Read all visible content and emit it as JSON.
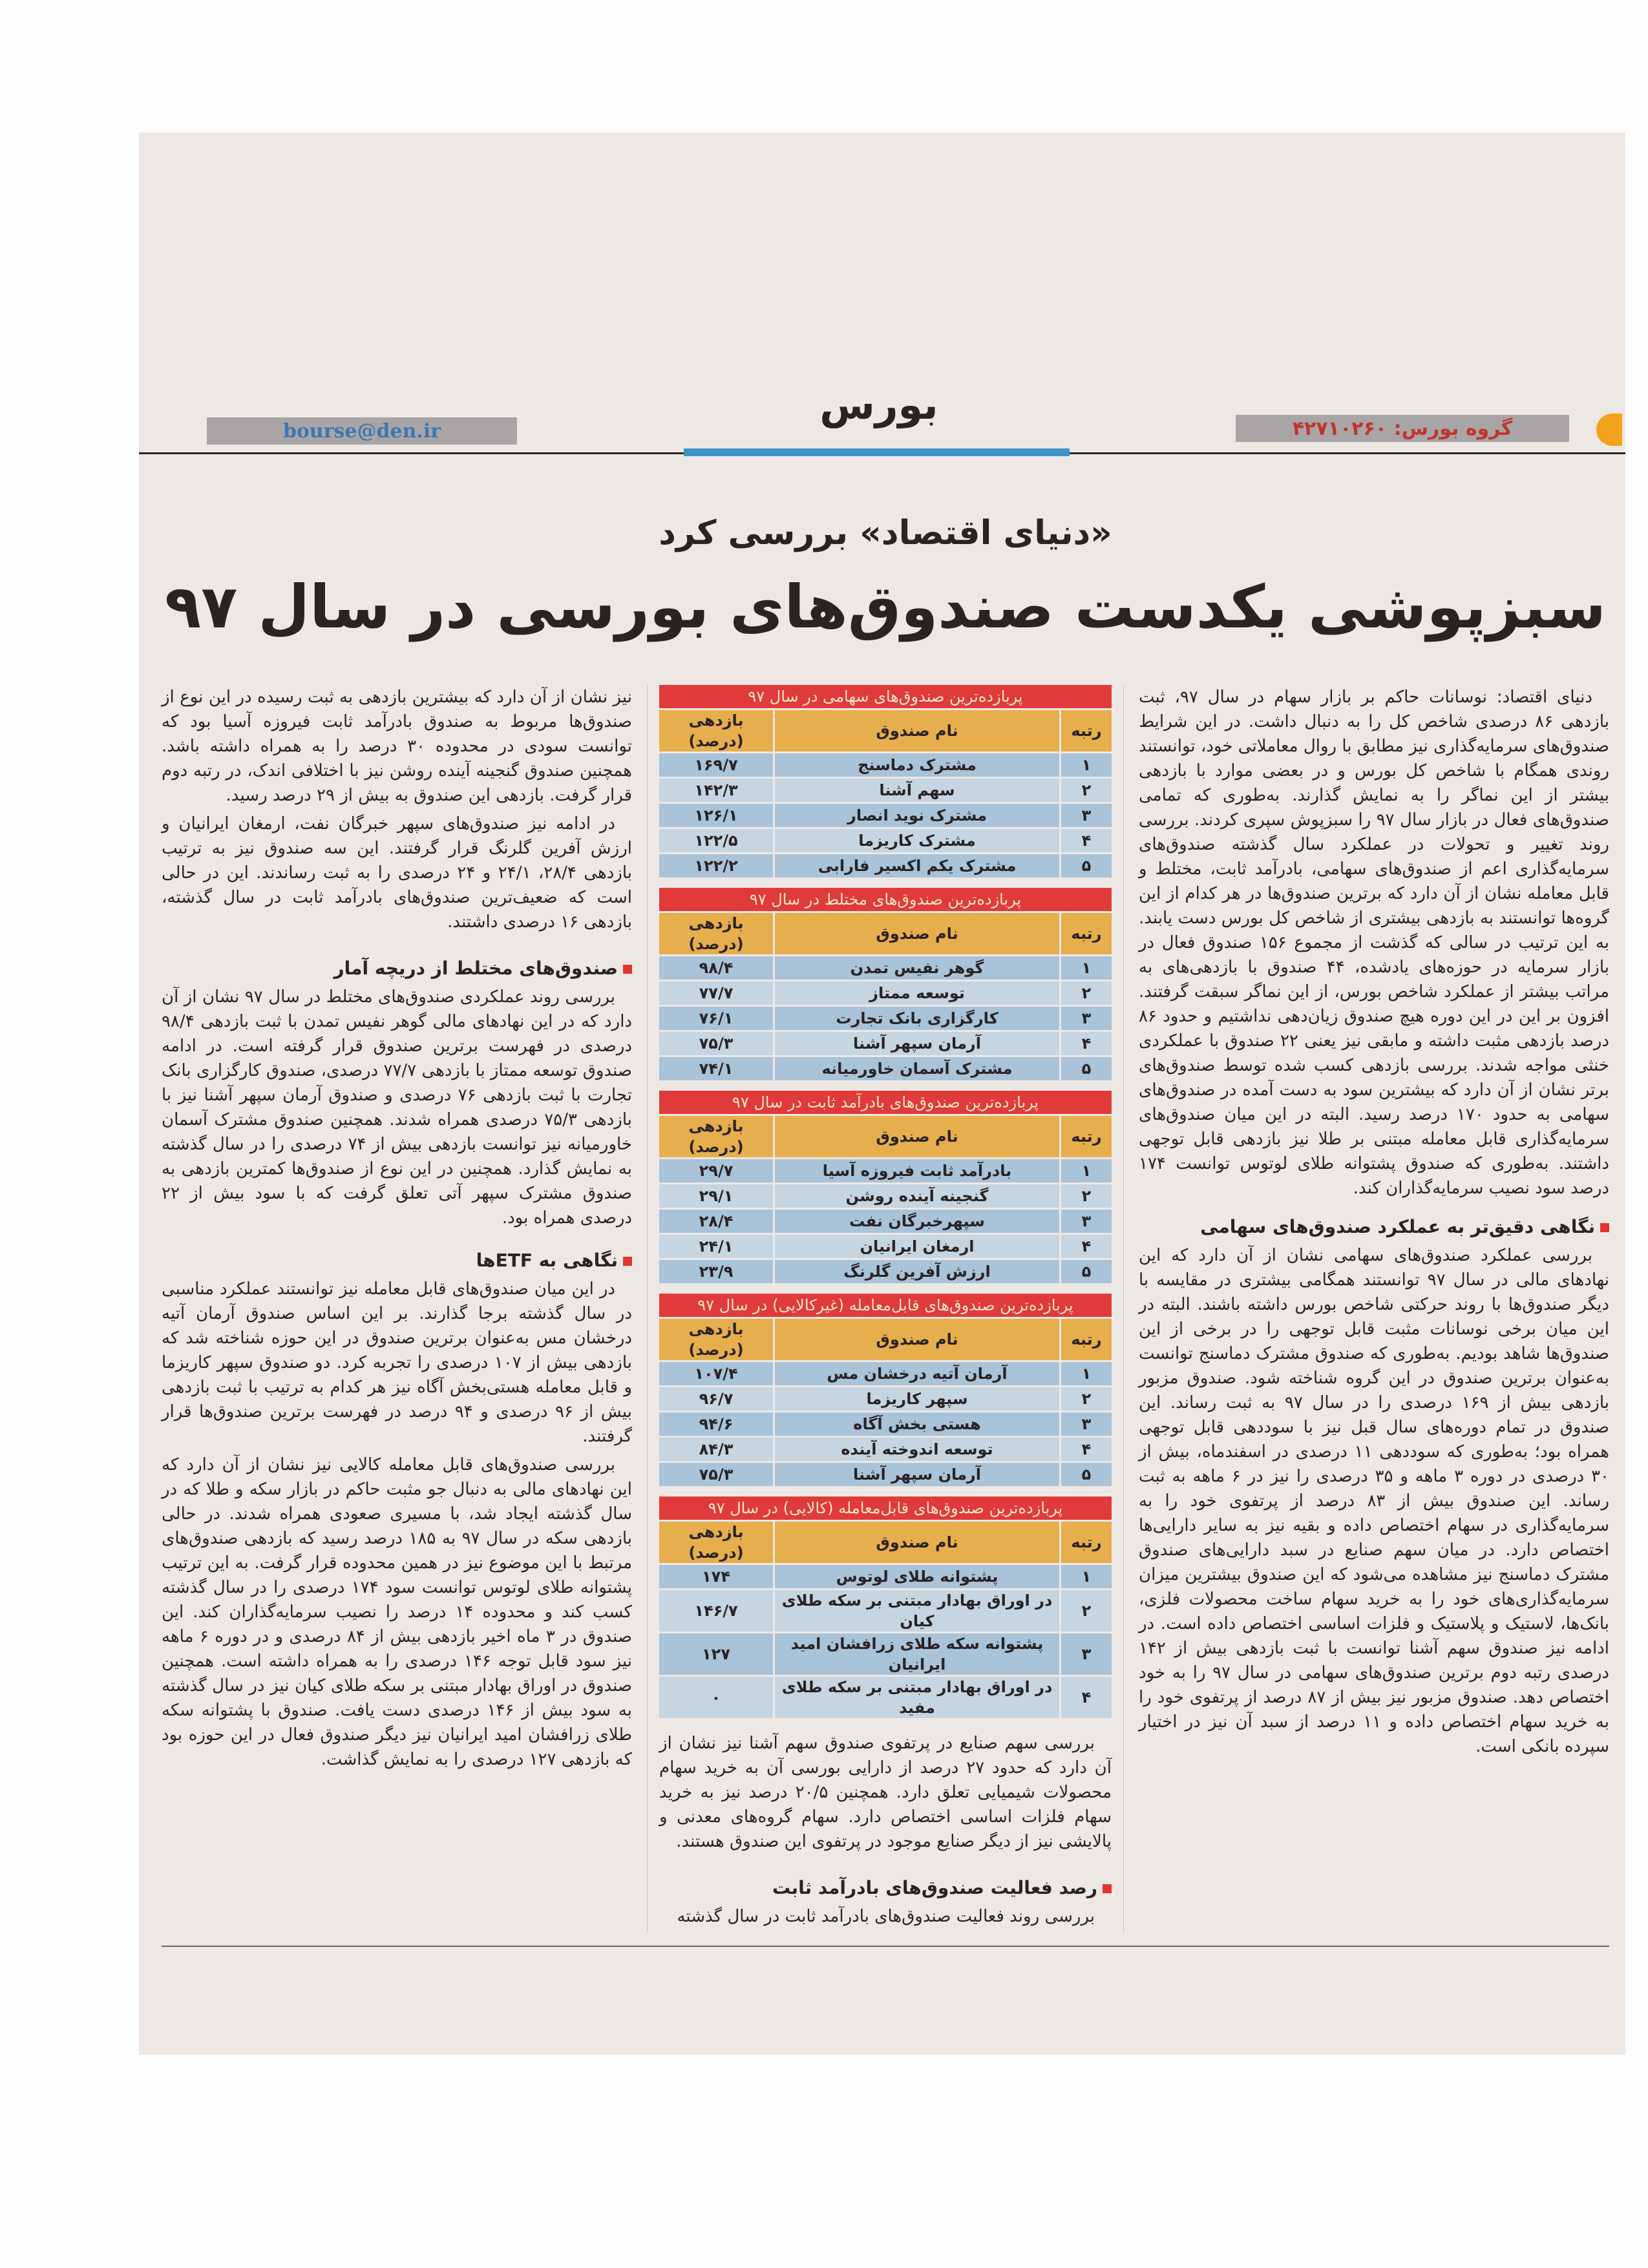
{
  "header": {
    "email": "bourse@den.ir",
    "section": "بورس",
    "phone": "گروه بورس: ۴۲۷۱۰۲۶۰",
    "accent_color": "#3d93c9"
  },
  "article": {
    "kicker": "«دنیای اقتصاد» بررسی کرد",
    "headline": "سبزپوشی یکدست صندوق‌های بورسی در سال ۹۷",
    "right_column": {
      "p1": "دنیای اقتصاد: نوسانات حاکم بر بازار سهام در سال ۹۷، ثبت بازدهی ۸۶ درصدی شاخص کل را به دنبال داشت. در این شرایط صندوق‌های سرمایه‌گذاری نیز مطابق با روال معاملاتی خود، توانستند روندی همگام با شاخص کل بورس و در بعضی موارد با بازدهی بیشتر از این نماگر را به نمایش گذارند. به‌طوری که تمامی صندوق‌های فعال در بازار سال ۹۷ را سبزپوش سپری کردند. بررسی روند تغییر و تحولات در عملکرد سال گذشته صندوق‌های سرمایه‌گذاری اعم از صندوق‌های سهامی، بادرآمد ثابت، مختلط و قابل معامله نشان از آن دارد که برترین صندوق‌ها در هر کدام از این گروه‌ها توانستند به بازدهی بیشتری از شاخص کل بورس دست یابند. به این ترتیب در سالی که گذشت از مجموع ۱۵۶ صندوق فعال در بازار سرمایه در حوزه‌های یادشده، ۴۴ صندوق با بازدهی‌های به مراتب بیشتر از عملکرد شاخص بورس، از این نماگر سبقت گرفتند. افزون بر این در این دوره هیچ صندوق زیان‌دهی نداشتیم و حدود ۸۶ درصد بازدهی مثبت داشته و مابقی نیز یعنی ۲۲ صندوق با عملکردی خنثی مواجه شدند. بررسی بازدهی کسب شده توسط صندوق‌های برتر نشان از آن دارد که بیشترین سود به دست آمده در صندوق‌های سهامی به حدود ۱۷۰ درصد رسید. البته در این میان صندوق‌های سرمایه‌گذاری قابل معامله مبتنی بر طلا نیز بازدهی قابل توجهی داشتند. به‌طوری که صندوق پشتوانه طلای لوتوس توانست ۱۷۴ درصد سود نصیب سرمایه‌گذاران کند.",
      "h1": "نگاهی دقیق‌تر به عملکرد صندوق‌های سهامی",
      "p2": "بررسی عملکرد صندوق‌های سهامی نشان از آن دارد که این نهادهای مالی در سال ۹۷ توانستند همگامی بیشتری در مقایسه با دیگر صندوق‌ها با روند حرکتی شاخص بورس داشته باشند. البته در این میان برخی نوسانات مثبت قابل توجهی را در برخی از این صندوق‌ها شاهد بودیم. به‌طوری که صندوق مشترک دماسنج توانست به‌عنوان برترین صندوق در این گروه شناخته شود. صندوق مزبور بازدهی بیش از ۱۶۹ درصدی را در سال ۹۷ به ثبت رساند. این صندوق در تمام دوره‌های سال قبل نیز با سوددهی قابل توجهی همراه بود؛ به‌طوری که سوددهی ۱۱ درصدی در اسفندماه، بیش از ۳۰ درصدی در دوره ۳ ماهه و ۳۵ درصدی را نیز در ۶ ماهه به ثبت رساند. این صندوق بیش از ۸۳ درصد از پرتفوی خود را به سرمایه‌گذاری در سهام اختصاص داده و بقیه نیز به سایر دارایی‌ها اختصاص دارد. در میان سهم صنایع در سبد دارایی‌های صندوق مشترک دماسنج نیز مشاهده می‌شود که این صندوق بیشترین میزان سرمایه‌گذاری‌های خود را به خرید سهام ساخت محصولات فلزی، بانک‌ها، لاستیک و پلاستیک و فلزات اساسی اختصاص داده است. در ادامه نیز صندوق سهم آشنا توانست با ثبت بازدهی بیش از ۱۴۲ درصدی رتبه دوم برترین صندوق‌های سهامی در سال ۹۷ را به خود اختصاص دهد. صندوق مزبور نیز بیش از ۸۷ درصد از پرتفوی خود را به خرید سهام اختصاص داده و ۱۱ درصد از سبد آن نیز در اختیار سپرده بانکی است."
    },
    "middle_column": {
      "p1": "بررسی سهم صنایع در پرتفوی صندوق سهم آشنا نیز نشان از آن دارد که حدود ۲۷ درصد از دارایی بورسی آن به خرید سهام محصولات شیمیایی تعلق دارد. همچنین ۲۰/۵ درصد نیز به خرید سهام فلزات اساسی اختصاص دارد. سهام گروه‌های معدنی و پالایشی نیز از دیگر صنایع موجود در پرتفوی این صندوق هستند.",
      "h1": "رصد فعالیت صندوق‌های بادرآمد ثابت",
      "p2": "بررسی روند فعالیت صندوق‌های بادرآمد ثابت در سال گذشته"
    },
    "left_column": {
      "p1": "نیز نشان از آن دارد که بیشترین بازدهی به ثبت رسیده در این نوع از صندوق‌ها مربوط به صندوق بادرآمد ثابت فیروزه آسیا بود که توانست سودی در محدوده ۳۰ درصد را به همراه داشته باشد. همچنین صندوق گنجینه آینده روشن نیز با اختلافی اندک، در رتبه دوم قرار گرفت. بازدهی این صندوق به بیش از ۲۹ درصد رسید.",
      "p2": "در ادامه نیز صندوق‌های سپهر خبرگان نفت، ارمغان ایرانیان و ارزش آفرین گلرنگ قرار گرفتند. این سه صندوق نیز به ترتیب بازدهی ۲۸/۴، ۲۴/۱ و ۲۴ درصدی را به ثبت رساندند. این در حالی است که ضعیف‌ترین صندوق‌های بادرآمد ثابت در سال گذشته، بازدهی ۱۶ درصدی داشتند.",
      "h1": "صندوق‌های مختلط از دریچه آمار",
      "p3": "بررسی روند عملکردی صندوق‌های مختلط در سال ۹۷ نشان از آن دارد که در این نهادهای مالی گوهر نفیس تمدن با ثبت بازدهی ۹۸/۴ درصدی در فهرست برترین صندوق قرار گرفته است. در ادامه صندوق توسعه ممتاز با بازدهی ۷۷/۷ درصدی، صندوق کارگزاری بانک تجارت با ثبت بازدهی ۷۶ درصدی و صندوق آرمان سپهر آشنا نیز با بازدهی ۷۵/۳ درصدی همراه شدند. همچنین صندوق مشترک آسمان خاورمیانه نیز توانست بازدهی بیش از ۷۴ درصدی را در سال گذشته به نمایش گذارد. همچنین در این نوع از صندوق‌ها کمترین بازدهی به صندوق مشترک سپهر آتی تعلق گرفت که با سود بیش از ۲۲ درصدی همراه بود.",
      "h2": "نگاهی به ETFها",
      "p4": "در این میان صندوق‌های قابل معامله نیز توانستند عملکرد مناسبی در سال گذشته برجا گذارند. بر این اساس صندوق آرمان آتیه درخشان مس به‌عنوان برترین صندوق در این حوزه شناخته شد که بازدهی بیش از ۱۰۷ درصدی را تجربه کرد. دو صندوق سپهر کاریزما و قابل معامله هستی‌بخش آگاه نیز هر کدام به ترتیب با ثبت بازدهی بیش از ۹۶ درصدی و ۹۴ درصد در فهرست برترین صندوق‌ها قرار گرفتند.",
      "p5": "بررسی صندوق‌های قابل معامله کالایی نیز نشان از آن دارد که این نهادهای مالی به دنبال جو مثبت حاکم در بازار سکه و طلا که در سال گذشته ایجاد شد، با مسیری صعودی همراه شدند. در حالی بازدهی سکه در سال ۹۷ به ۱۸۵ درصد رسید که بازدهی صندوق‌های مرتبط با این موضوع نیز در همین محدوده قرار گرفت. به این ترتیب پشتوانه طلای لوتوس توانست سود ۱۷۴ درصدی را در سال گذشته کسب کند و محدوده ۱۴ درصد را نصیب سرمایه‌گذاران کند. این صندوق در ۳ ماه اخیر بازدهی بیش از ۸۴ درصدی و در دوره ۶ ماهه نیز سود قابل توجه ۱۴۶ درصدی را به همراه داشته است. همچنین صندوق در اوراق بهادار مبتنی بر سکه طلای کیان نیز در سال گذشته به سود بیش از ۱۴۶ درصدی دست یافت. صندوق با پشتوانه سکه طلای زرافشان امید ایرانیان نیز دیگر صندوق فعال در این حوزه بود که بازدهی ۱۲۷ درصدی را به نمایش گذاشت."
    }
  },
  "table_colors": {
    "title": "#e03a3a",
    "header": "#e6ae4c",
    "row_dark": "#a9c3d8",
    "row_light": "#c5d5e1"
  },
  "tables": [
    {
      "title": "پربازده‌ترین صندوق‌های سهامی در سال ۹۷",
      "columns": [
        "رتبه",
        "نام صندوق",
        "بازدهی (درصد)"
      ],
      "rows": [
        [
          "۱",
          "مشترک دماسنج",
          "۱۶۹/۷"
        ],
        [
          "۲",
          "سهم آشنا",
          "۱۴۲/۳"
        ],
        [
          "۳",
          "مشترک نوید انصار",
          "۱۲۶/۱"
        ],
        [
          "۴",
          "مشترک کاریزما",
          "۱۲۲/۵"
        ],
        [
          "۵",
          "مشترک یکم اکسیر فارابی",
          "۱۲۲/۲"
        ]
      ]
    },
    {
      "title": "پربازده‌ترین صندوق‌های مختلط در سال ۹۷",
      "columns": [
        "رتبه",
        "نام صندوق",
        "بازدهی (درصد)"
      ],
      "rows": [
        [
          "۱",
          "گوهر نفیس تمدن",
          "۹۸/۴"
        ],
        [
          "۲",
          "توسعه ممتاز",
          "۷۷/۷"
        ],
        [
          "۳",
          "کارگزاری بانک تجارت",
          "۷۶/۱"
        ],
        [
          "۴",
          "آرمان سپهر آشنا",
          "۷۵/۳"
        ],
        [
          "۵",
          "مشترک آسمان خاورمیانه",
          "۷۴/۱"
        ]
      ]
    },
    {
      "title": "پربازده‌ترین صندوق‌های بادرآمد ثابت در سال ۹۷",
      "columns": [
        "رتبه",
        "نام صندوق",
        "بازدهی (درصد)"
      ],
      "rows": [
        [
          "۱",
          "بادرآمد ثابت فیروزه آسیا",
          "۲۹/۷"
        ],
        [
          "۲",
          "گنجینه آینده روشن",
          "۲۹/۱"
        ],
        [
          "۳",
          "سپهرخبرگان نفت",
          "۲۸/۴"
        ],
        [
          "۴",
          "ارمغان ایرانیان",
          "۲۴/۱"
        ],
        [
          "۵",
          "ارزش آفرین گلرنگ",
          "۲۳/۹"
        ]
      ]
    },
    {
      "title": "پربازده‌ترین صندوق‌های قابل‌معامله (غیرکالایی) در سال ۹۷",
      "columns": [
        "رتبه",
        "نام صندوق",
        "بازدهی (درصد)"
      ],
      "rows": [
        [
          "۱",
          "آرمان آتیه درخشان مس",
          "۱۰۷/۴"
        ],
        [
          "۲",
          "سپهر کاریزما",
          "۹۶/۷"
        ],
        [
          "۳",
          "هستی بخش آگاه",
          "۹۴/۶"
        ],
        [
          "۴",
          "توسعه اندوخته آینده",
          "۸۴/۳"
        ],
        [
          "۵",
          "آرمان سپهر آشنا",
          "۷۵/۳"
        ]
      ]
    },
    {
      "title": "پربازده‌ترین صندوق‌های قابل‌معامله (کالایی) در سال ۹۷",
      "columns": [
        "رتبه",
        "نام صندوق",
        "بازدهی (درصد)"
      ],
      "rows": [
        [
          "۱",
          "پشتوانه طلای لوتوس",
          "۱۷۴"
        ],
        [
          "۲",
          "در اوراق بهادار مبتنی بر سکه طلای کیان",
          "۱۴۶/۷"
        ],
        [
          "۳",
          "پشتوانه سکه طلای زرافشان امید ایرانیان",
          "۱۲۷"
        ],
        [
          "۴",
          "در اوراق بهادار مبتنی بر سکه طلای مفید",
          "۰"
        ]
      ]
    }
  ]
}
